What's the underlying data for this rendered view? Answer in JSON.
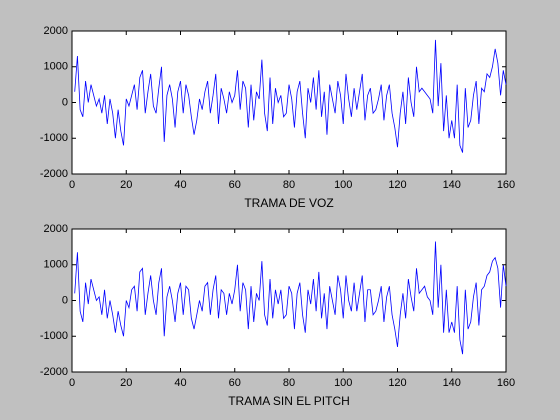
{
  "chart_data": [
    {
      "type": "line",
      "xlabel": "TRAMA DE VOZ",
      "x": [
        1,
        2,
        3,
        4,
        5,
        6,
        7,
        8,
        9,
        10,
        11,
        12,
        13,
        14,
        15,
        16,
        17,
        18,
        19,
        20,
        21,
        22,
        23,
        24,
        25,
        26,
        27,
        28,
        29,
        30,
        31,
        32,
        33,
        34,
        35,
        36,
        37,
        38,
        39,
        40,
        41,
        42,
        43,
        44,
        45,
        46,
        47,
        48,
        49,
        50,
        51,
        52,
        53,
        54,
        55,
        56,
        57,
        58,
        59,
        60,
        61,
        62,
        63,
        64,
        65,
        66,
        67,
        68,
        69,
        70,
        71,
        72,
        73,
        74,
        75,
        76,
        77,
        78,
        79,
        80,
        81,
        82,
        83,
        84,
        85,
        86,
        87,
        88,
        89,
        90,
        91,
        92,
        93,
        94,
        95,
        96,
        97,
        98,
        99,
        100,
        101,
        102,
        103,
        104,
        105,
        106,
        107,
        108,
        109,
        110,
        111,
        112,
        113,
        114,
        115,
        116,
        117,
        118,
        119,
        120,
        121,
        122,
        123,
        124,
        125,
        126,
        127,
        128,
        129,
        130,
        131,
        132,
        133,
        134,
        135,
        136,
        137,
        138,
        139,
        140,
        141,
        142,
        143,
        144,
        145,
        146,
        147,
        148,
        149,
        150,
        151,
        152,
        153,
        154,
        155,
        156,
        157,
        158,
        159,
        160
      ],
      "series": [
        {
          "color": "#0000ff",
          "values": [
            300,
            1300,
            -200,
            -400,
            600,
            0,
            500,
            200,
            -100,
            100,
            -300,
            200,
            -600,
            100,
            -300,
            -1000,
            -200,
            -800,
            -1200,
            100,
            -100,
            200,
            500,
            -200,
            700,
            900,
            -300,
            300,
            800,
            -100,
            -300,
            400,
            1000,
            -1100,
            200,
            500,
            100,
            -700,
            300,
            600,
            -300,
            500,
            200,
            -400,
            -900,
            -500,
            100,
            -200,
            300,
            600,
            -300,
            200,
            800,
            -600,
            400,
            100,
            -300,
            300,
            0,
            200,
            900,
            -200,
            600,
            400,
            -700,
            500,
            -500,
            300,
            100,
            1200,
            -300,
            -800,
            700,
            -600,
            400,
            0,
            200,
            -400,
            -300,
            500,
            100,
            -700,
            300,
            600,
            -300,
            -1000,
            400,
            0,
            700,
            -200,
            900,
            -400,
            300,
            -900,
            500,
            100,
            -300,
            600,
            200,
            -600,
            800,
            100,
            -400,
            400,
            -200,
            300,
            800,
            -500,
            200,
            400,
            -300,
            -200,
            100,
            500,
            -500,
            200,
            500,
            -300,
            -700,
            -1250,
            -300,
            300,
            -600,
            700,
            0,
            -400,
            1000,
            300,
            400,
            300,
            200,
            100,
            -300,
            1750,
            -100,
            1100,
            -800,
            200,
            -1000,
            -500,
            -1000,
            500,
            -1200,
            -1400,
            400,
            -700,
            -500,
            200,
            600,
            -600,
            400,
            300,
            800,
            700,
            1000,
            1500,
            1100,
            200,
            900,
            500
          ]
        }
      ],
      "xlim": [
        0,
        160
      ],
      "ylim": [
        -2000,
        2000
      ],
      "xticks": [
        0,
        20,
        40,
        60,
        80,
        100,
        120,
        140,
        160
      ],
      "yticks": [
        -2000,
        -1000,
        0,
        1000,
        2000
      ]
    },
    {
      "type": "line",
      "xlabel": "TRAMA SIN EL PITCH",
      "x": [
        1,
        2,
        3,
        4,
        5,
        6,
        7,
        8,
        9,
        10,
        11,
        12,
        13,
        14,
        15,
        16,
        17,
        18,
        19,
        20,
        21,
        22,
        23,
        24,
        25,
        26,
        27,
        28,
        29,
        30,
        31,
        32,
        33,
        34,
        35,
        36,
        37,
        38,
        39,
        40,
        41,
        42,
        43,
        44,
        45,
        46,
        47,
        48,
        49,
        50,
        51,
        52,
        53,
        54,
        55,
        56,
        57,
        58,
        59,
        60,
        61,
        62,
        63,
        64,
        65,
        66,
        67,
        68,
        69,
        70,
        71,
        72,
        73,
        74,
        75,
        76,
        77,
        78,
        79,
        80,
        81,
        82,
        83,
        84,
        85,
        86,
        87,
        88,
        89,
        90,
        91,
        92,
        93,
        94,
        95,
        96,
        97,
        98,
        99,
        100,
        101,
        102,
        103,
        104,
        105,
        106,
        107,
        108,
        109,
        110,
        111,
        112,
        113,
        114,
        115,
        116,
        117,
        118,
        119,
        120,
        121,
        122,
        123,
        124,
        125,
        126,
        127,
        128,
        129,
        130,
        131,
        132,
        133,
        134,
        135,
        136,
        137,
        138,
        139,
        140,
        141,
        142,
        143,
        144,
        145,
        146,
        147,
        148,
        149,
        150,
        151,
        152,
        153,
        154,
        155,
        156,
        157,
        158,
        159,
        160
      ],
      "series": [
        {
          "color": "#0000ff",
          "values": [
            200,
            1350,
            -300,
            -600,
            500,
            -100,
            600,
            300,
            0,
            100,
            -400,
            300,
            -500,
            0,
            -400,
            -900,
            -300,
            -700,
            -1000,
            0,
            -200,
            300,
            400,
            -300,
            800,
            900,
            -400,
            200,
            700,
            0,
            -400,
            500,
            900,
            -1000,
            100,
            400,
            0,
            -600,
            200,
            500,
            -400,
            400,
            300,
            -500,
            -800,
            -400,
            0,
            -300,
            400,
            500,
            -400,
            300,
            700,
            -500,
            300,
            200,
            -400,
            200,
            -100,
            300,
            1000,
            -300,
            500,
            300,
            -800,
            400,
            -600,
            200,
            0,
            1100,
            -400,
            -700,
            600,
            -500,
            300,
            -100,
            300,
            -500,
            -400,
            400,
            200,
            -800,
            200,
            500,
            -400,
            -900,
            300,
            -100,
            600,
            -300,
            800,
            -500,
            200,
            -800,
            400,
            0,
            -400,
            700,
            300,
            -500,
            700,
            0,
            -300,
            500,
            -300,
            200,
            700,
            -600,
            300,
            300,
            -400,
            -300,
            0,
            400,
            -600,
            100,
            400,
            -400,
            -800,
            -1300,
            -400,
            200,
            -500,
            600,
            100,
            -300,
            900,
            200,
            300,
            400,
            100,
            0,
            -400,
            1650,
            -200,
            1000,
            -900,
            300,
            -900,
            -600,
            -900,
            400,
            -1100,
            -1500,
            300,
            -800,
            -600,
            100,
            500,
            -700,
            300,
            400,
            700,
            800,
            1100,
            1200,
            900,
            -200,
            1000,
            400
          ]
        }
      ],
      "xlim": [
        0,
        160
      ],
      "ylim": [
        -2000,
        2000
      ],
      "xticks": [
        0,
        20,
        40,
        60,
        80,
        100,
        120,
        140,
        160
      ],
      "yticks": [
        -2000,
        -1000,
        0,
        1000,
        2000
      ]
    }
  ]
}
